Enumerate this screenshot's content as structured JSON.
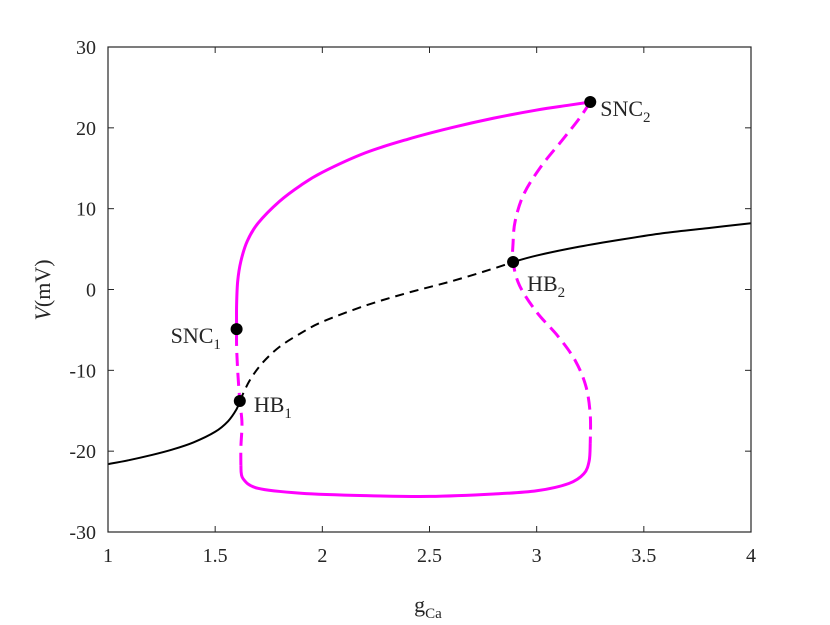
{
  "chart_data": {
    "type": "line",
    "xlabel": {
      "main": "g",
      "sub": "Ca"
    },
    "ylabel": {
      "italic": "V",
      "rest": "(mV)"
    },
    "xlim": [
      1,
      4
    ],
    "ylim": [
      -30,
      30
    ],
    "x_ticks": [
      "1",
      "1.5",
      "2",
      "2.5",
      "3",
      "3.5",
      "4"
    ],
    "y_ticks": [
      "-30",
      "-20",
      "-10",
      "0",
      "10",
      "20",
      "30"
    ],
    "grid": false,
    "colors": {
      "equilibrium": "#000000",
      "periodic": "#ff00ff",
      "axis": "#262626"
    },
    "series": [
      {
        "style": "solid",
        "color": "#000000",
        "points": [
          [
            1.0,
            -21.6
          ],
          [
            1.1,
            -21.1
          ],
          [
            1.2,
            -20.5
          ],
          [
            1.3,
            -19.8
          ],
          [
            1.4,
            -18.9
          ],
          [
            1.5,
            -17.6
          ],
          [
            1.56,
            -16.3
          ],
          [
            1.6,
            -14.8
          ],
          [
            1.615,
            -13.8
          ]
        ]
      },
      {
        "style": "dashed",
        "color": "#000000",
        "points": [
          [
            1.615,
            -13.8
          ],
          [
            1.66,
            -11.3
          ],
          [
            1.72,
            -9.1
          ],
          [
            1.8,
            -7.1
          ],
          [
            1.9,
            -5.4
          ],
          [
            2.0,
            -4.0
          ],
          [
            2.2,
            -2.0
          ],
          [
            2.4,
            -0.4
          ],
          [
            2.6,
            1.0
          ],
          [
            2.8,
            2.6
          ],
          [
            2.89,
            3.4
          ]
        ]
      },
      {
        "style": "solid",
        "color": "#000000",
        "points": [
          [
            2.89,
            3.4
          ],
          [
            3.0,
            4.2
          ],
          [
            3.2,
            5.3
          ],
          [
            3.4,
            6.2
          ],
          [
            3.6,
            7.0
          ],
          [
            3.8,
            7.6
          ],
          [
            4.0,
            8.2
          ]
        ]
      },
      {
        "style": "solid",
        "color": "#ff00ff",
        "points": [
          [
            1.6,
            -4.9
          ],
          [
            1.6,
            -2.0
          ],
          [
            1.605,
            1.0
          ],
          [
            1.62,
            3.5
          ],
          [
            1.65,
            6.0
          ],
          [
            1.7,
            8.2
          ],
          [
            1.8,
            10.9
          ],
          [
            1.9,
            12.9
          ],
          [
            2.0,
            14.5
          ],
          [
            2.2,
            16.9
          ],
          [
            2.4,
            18.6
          ],
          [
            2.6,
            20.0
          ],
          [
            2.8,
            21.2
          ],
          [
            3.0,
            22.2
          ],
          [
            3.15,
            22.8
          ],
          [
            3.25,
            23.2
          ]
        ]
      },
      {
        "style": "dashed",
        "color": "#ff00ff",
        "points": [
          [
            3.25,
            23.2
          ],
          [
            3.2,
            21.2
          ],
          [
            3.12,
            18.5
          ],
          [
            3.02,
            15.2
          ],
          [
            2.94,
            11.8
          ],
          [
            2.9,
            8.5
          ],
          [
            2.89,
            5.8
          ],
          [
            2.89,
            3.4
          ],
          [
            2.92,
            0.5
          ],
          [
            3.0,
            -2.8
          ],
          [
            3.1,
            -5.8
          ],
          [
            3.18,
            -8.8
          ],
          [
            3.23,
            -12.0
          ],
          [
            3.25,
            -15.5
          ],
          [
            3.25,
            -19.0
          ]
        ]
      },
      {
        "style": "solid",
        "color": "#ff00ff",
        "points": [
          [
            3.25,
            -19.0
          ],
          [
            3.245,
            -21.2
          ],
          [
            3.22,
            -22.8
          ],
          [
            3.15,
            -24.0
          ],
          [
            3.0,
            -24.9
          ],
          [
            2.8,
            -25.3
          ],
          [
            2.5,
            -25.6
          ],
          [
            2.2,
            -25.5
          ],
          [
            1.9,
            -25.2
          ],
          [
            1.7,
            -24.6
          ],
          [
            1.63,
            -23.4
          ],
          [
            1.62,
            -21.8
          ]
        ]
      },
      {
        "style": "dashed",
        "color": "#ff00ff",
        "points": [
          [
            1.62,
            -21.8
          ],
          [
            1.62,
            -19.5
          ],
          [
            1.625,
            -16.5
          ],
          [
            1.615,
            -13.8
          ],
          [
            1.605,
            -10.0
          ],
          [
            1.6,
            -7.0
          ],
          [
            1.6,
            -4.9
          ]
        ]
      }
    ],
    "markers": [
      {
        "name": "SNC",
        "sub": "1",
        "x": 1.6,
        "y": -4.9
      },
      {
        "name": "HB",
        "sub": "1",
        "x": 1.615,
        "y": -13.8
      },
      {
        "name": "HB",
        "sub": "2",
        "x": 2.89,
        "y": 3.4
      },
      {
        "name": "SNC",
        "sub": "2",
        "x": 3.25,
        "y": 23.2
      }
    ]
  }
}
